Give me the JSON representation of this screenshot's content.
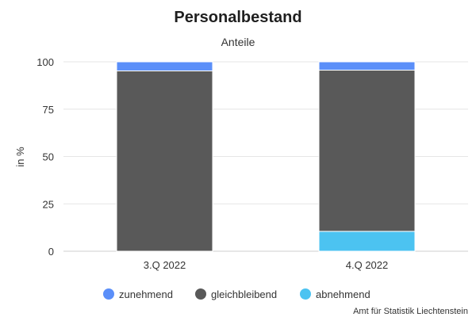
{
  "chart_data": {
    "type": "bar",
    "stacked": true,
    "title": "Personalbestand",
    "subtitle": "Anteile",
    "xlabel": "",
    "ylabel": "in %",
    "categories": [
      "3.Q 2022",
      "4.Q 2022"
    ],
    "ylim": [
      0,
      100
    ],
    "yticks": [
      0,
      25,
      50,
      75,
      100
    ],
    "grid": true,
    "legend": "bottom-center",
    "series": [
      {
        "name": "abnehmend",
        "values": [
          0,
          10.5
        ],
        "color": "#4cc3f1"
      },
      {
        "name": "gleichbleibend",
        "values": [
          95.2,
          85.1
        ],
        "color": "#595959"
      },
      {
        "name": "zunehmend",
        "values": [
          4.8,
          4.4
        ],
        "color": "#5b8ff9"
      }
    ],
    "legend_order": [
      "zunehmend",
      "gleichbleibend",
      "abnehmend"
    ],
    "credit": "Amt für Statistik Liechtenstein"
  }
}
